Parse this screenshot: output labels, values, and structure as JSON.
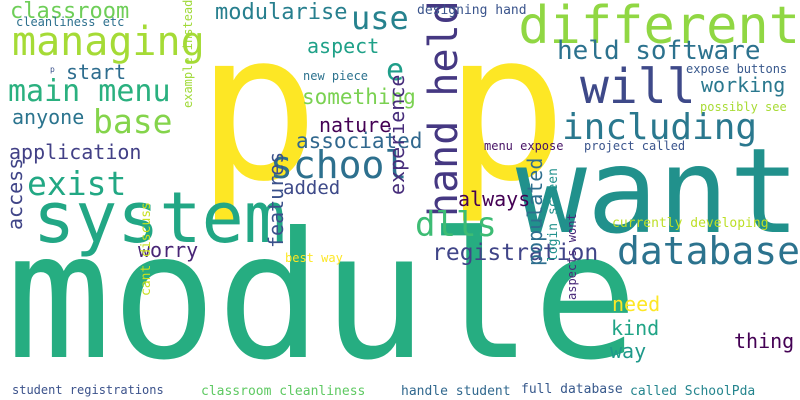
{
  "words": [
    {
      "text": "module",
      "color": "#26ad81"
    },
    {
      "text": "p",
      "color": "#fde725"
    },
    {
      "text": "p",
      "color": "#fde725"
    },
    {
      "text": "want",
      "color": "#21918c"
    },
    {
      "text": "system",
      "color": "#22a785"
    },
    {
      "text": "different",
      "color": "#90d743"
    },
    {
      "text": "will",
      "color": "#3e4989"
    },
    {
      "text": "managing",
      "color": "#a5db36"
    },
    {
      "text": "hand held",
      "color": "#453882"
    },
    {
      "text": "held software",
      "color": "#2c728e"
    },
    {
      "text": "including",
      "color": "#2a788e"
    },
    {
      "text": "school",
      "color": "#2d708e"
    },
    {
      "text": "database",
      "color": "#2c738e"
    },
    {
      "text": "base",
      "color": "#84d44b"
    },
    {
      "text": "main menu",
      "color": "#2ab07f"
    },
    {
      "text": "exist",
      "color": "#22a884"
    },
    {
      "text": "dlls",
      "color": "#3dbc74"
    },
    {
      "text": "use",
      "color": "#26828e"
    },
    {
      "text": "e",
      "color": "#1f9e89"
    },
    {
      "text": "registration",
      "color": "#404588"
    },
    {
      "text": "classroom",
      "color": "#6ece58"
    },
    {
      "text": "modularise",
      "color": "#277f8e"
    },
    {
      "text": "associated",
      "color": "#31688e"
    },
    {
      "text": "something",
      "color": "#7ad151"
    },
    {
      "text": "working",
      "color": "#2a788e"
    },
    {
      "text": "application",
      "color": "#424086"
    },
    {
      "text": "start",
      "color": "#2e6d8e"
    },
    {
      "text": "anyone",
      "color": "#2b748e"
    },
    {
      "text": "nature",
      "color": "#440154"
    },
    {
      "text": "added",
      "color": "#3e4a89"
    },
    {
      "text": "always",
      "color": "#440154"
    },
    {
      "text": "aspect",
      "color": "#1fa188"
    },
    {
      "text": "experience",
      "color": "#472d7b"
    },
    {
      "text": "worry",
      "color": "#482576"
    },
    {
      "text": "access",
      "color": "#404588"
    },
    {
      "text": "features",
      "color": "#3b518b"
    },
    {
      "text": "populated",
      "color": "#2e6e8e"
    },
    {
      "text": "need",
      "color": "#fde725"
    },
    {
      "text": "kind",
      "color": "#20a486"
    },
    {
      "text": "way",
      "color": "#1f998a"
    },
    {
      "text": "thing",
      "color": "#440154"
    },
    {
      "text": "currently developing",
      "color": "#bddf26"
    },
    {
      "text": "designing hand",
      "color": "#3a548c"
    },
    {
      "text": "expose buttons",
      "color": "#38588c"
    },
    {
      "text": "possibly see",
      "color": "#a8db34"
    },
    {
      "text": "project called",
      "color": "#3a548c"
    },
    {
      "text": "menu expose",
      "color": "#471365"
    },
    {
      "text": "new piece",
      "color": "#2c728e"
    },
    {
      "text": "example instead",
      "color": "#a0da39"
    },
    {
      "text": "cleanliness etc",
      "color": "#2d708e"
    },
    {
      "text": "p",
      "color": "#3b518b"
    },
    {
      "text": "best way",
      "color": "#fde725"
    },
    {
      "text": "cant discuss",
      "color": "#c8e020"
    },
    {
      "text": "login screen",
      "color": "#21918c"
    },
    {
      "text": "aspects wont",
      "color": "#482979"
    },
    {
      "text": "student registrations",
      "color": "#3b528b"
    },
    {
      "text": "classroom cleanliness",
      "color": "#5ec962"
    },
    {
      "text": "handle student",
      "color": "#31688e"
    },
    {
      "text": "full database",
      "color": "#38598c"
    },
    {
      "text": "called SchoolPda",
      "color": "#25858e"
    }
  ]
}
